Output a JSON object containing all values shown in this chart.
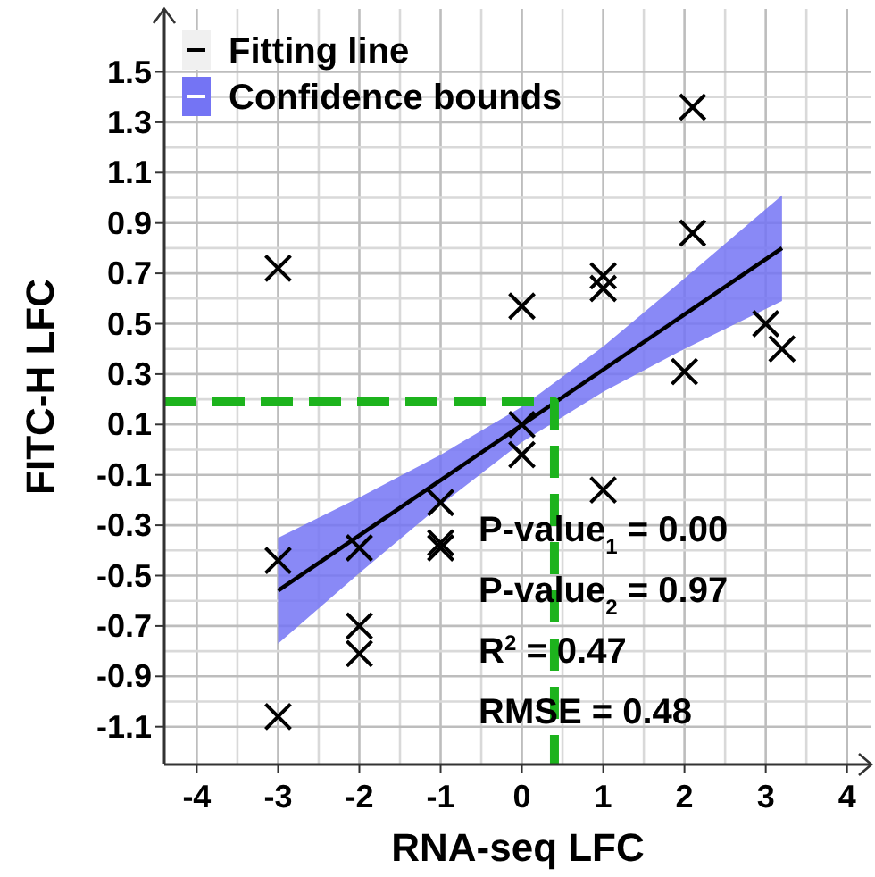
{
  "chart_data": {
    "type": "scatter",
    "xlabel": "RNA-seq LFC",
    "ylabel": "FITC-H LFC",
    "xlim": [
      -4.4,
      4.3
    ],
    "ylim": [
      -1.25,
      1.75
    ],
    "xticks": [
      -4,
      -3,
      -2,
      -1,
      0,
      1,
      2,
      3,
      4
    ],
    "yticks": [
      -1.1,
      -0.9,
      -0.7,
      -0.5,
      -0.3,
      -0.1,
      0.1,
      0.3,
      0.5,
      0.7,
      0.9,
      1.1,
      1.3,
      1.5
    ],
    "grid": true,
    "legend": "top left",
    "annotations": [
      "P-value$_{1}$ = 0.00",
      "P-value$_{2}$ = 0.97",
      "R$^{2}$ = 0.47",
      "RMSE = 0.48"
    ],
    "series": [
      {
        "type": "line",
        "name": "Fitting line",
        "color": "#000000",
        "x": [
          -3,
          3.2
        ],
        "values": [
          -0.56,
          0.8
        ]
      },
      {
        "type": "line",
        "name": "Confidence bounds",
        "color": "#7474f4",
        "x": [
          -3,
          -2,
          -1,
          0,
          1,
          2,
          3.2
        ],
        "values": [
          -0.56,
          -0.34,
          -0.12,
          0.1,
          0.32,
          0.54,
          0.8
        ],
        "lower": [
          -0.77,
          -0.49,
          -0.22,
          0.03,
          0.23,
          0.4,
          0.59
        ],
        "upper": [
          -0.35,
          -0.19,
          -0.02,
          0.17,
          0.41,
          0.68,
          1.01
        ]
      },
      {
        "type": "line",
        "color": "#1db31d",
        "line_style": "dashed",
        "x": [
          -4.4,
          0.4,
          0.4
        ],
        "values": [
          0.19,
          0.19,
          -1.25
        ]
      },
      {
        "type": "scatter",
        "marker": "cross",
        "color": "#000000",
        "x": [
          -3,
          0,
          1,
          1,
          2.1,
          2.1,
          2,
          3,
          3.2,
          0,
          0,
          1,
          -1,
          -1,
          -1,
          -2,
          -3,
          -2,
          -2,
          -3
        ],
        "values": [
          0.72,
          0.57,
          0.69,
          0.64,
          1.36,
          0.86,
          0.31,
          0.5,
          0.4,
          0.1,
          -0.02,
          -0.16,
          -0.21,
          -0.37,
          -0.39,
          -0.39,
          -0.44,
          -0.7,
          -0.81,
          -1.06
        ]
      }
    ]
  }
}
